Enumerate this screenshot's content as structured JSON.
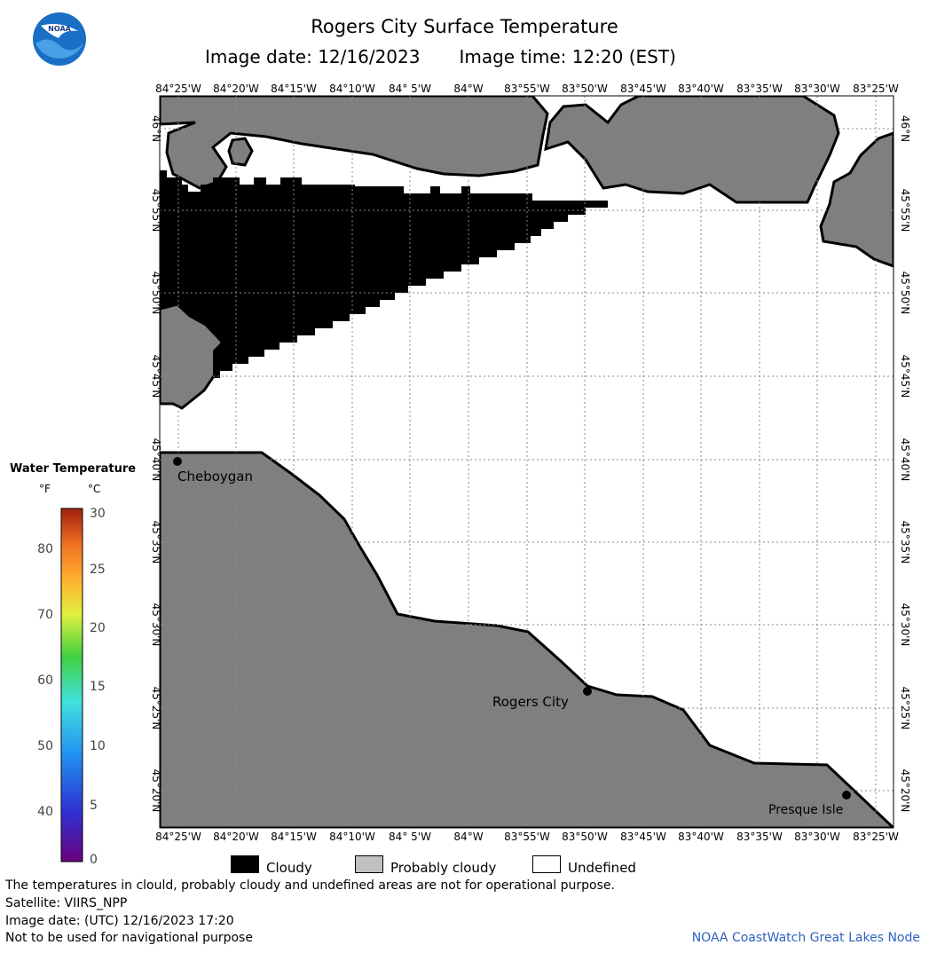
{
  "header": {
    "title": "Rogers City Surface Temperature",
    "image_date": "Image date: 12/16/2023",
    "image_time": "Image time: 12:20 (EST)"
  },
  "logo": {
    "text": "NOAA",
    "icon": "noaa-logo-icon"
  },
  "map": {
    "lon_labels": [
      "84°25'W",
      "84°20'W",
      "84°15'W",
      "84°10'W",
      "84° 5'W",
      "84°W",
      "83°55'W",
      "83°50'W",
      "83°45'W",
      "83°40'W",
      "83°35'W",
      "83°30'W",
      "83°25'W"
    ],
    "lat_labels": [
      "46°N",
      "45°55'N",
      "45°50'N",
      "45°45'N",
      "45°40'N",
      "45°35'N",
      "45°30'N",
      "45°25'N",
      "45°20'N"
    ],
    "places": [
      {
        "name": "Cheboygan"
      },
      {
        "name": "Rogers City"
      },
      {
        "name": "Presque Isle"
      }
    ],
    "colors": {
      "land": "#7f7f7f",
      "cloud": "#000000",
      "water_undefined": "#ffffff",
      "grid": "#888888"
    }
  },
  "legend": {
    "title": "Water Temperature",
    "unit_f": "°F",
    "unit_c": "°C",
    "f_ticks": [
      "80",
      "70",
      "60",
      "50",
      "40"
    ],
    "c_ticks": [
      "30",
      "25",
      "20",
      "15",
      "10",
      "5",
      "0"
    ]
  },
  "key": {
    "cloudy": "Cloudy",
    "probably_cloudy": "Probably cloudy",
    "undefined": "Undefined",
    "colors": {
      "cloudy": "#000000",
      "probably_cloudy": "#c0c0c0",
      "undefined": "#ffffff"
    }
  },
  "footer": {
    "disclaimer": "The temperatures in clould, probably cloudy and undefined areas are not for operational purpose.",
    "satellite": "Satellite: VIIRS_NPP",
    "utc_date": "Image date: (UTC) 12/16/2023  17:20",
    "nav_warning": "Not to be used for navigational purpose",
    "credit": "NOAA CoastWatch Great Lakes Node"
  }
}
